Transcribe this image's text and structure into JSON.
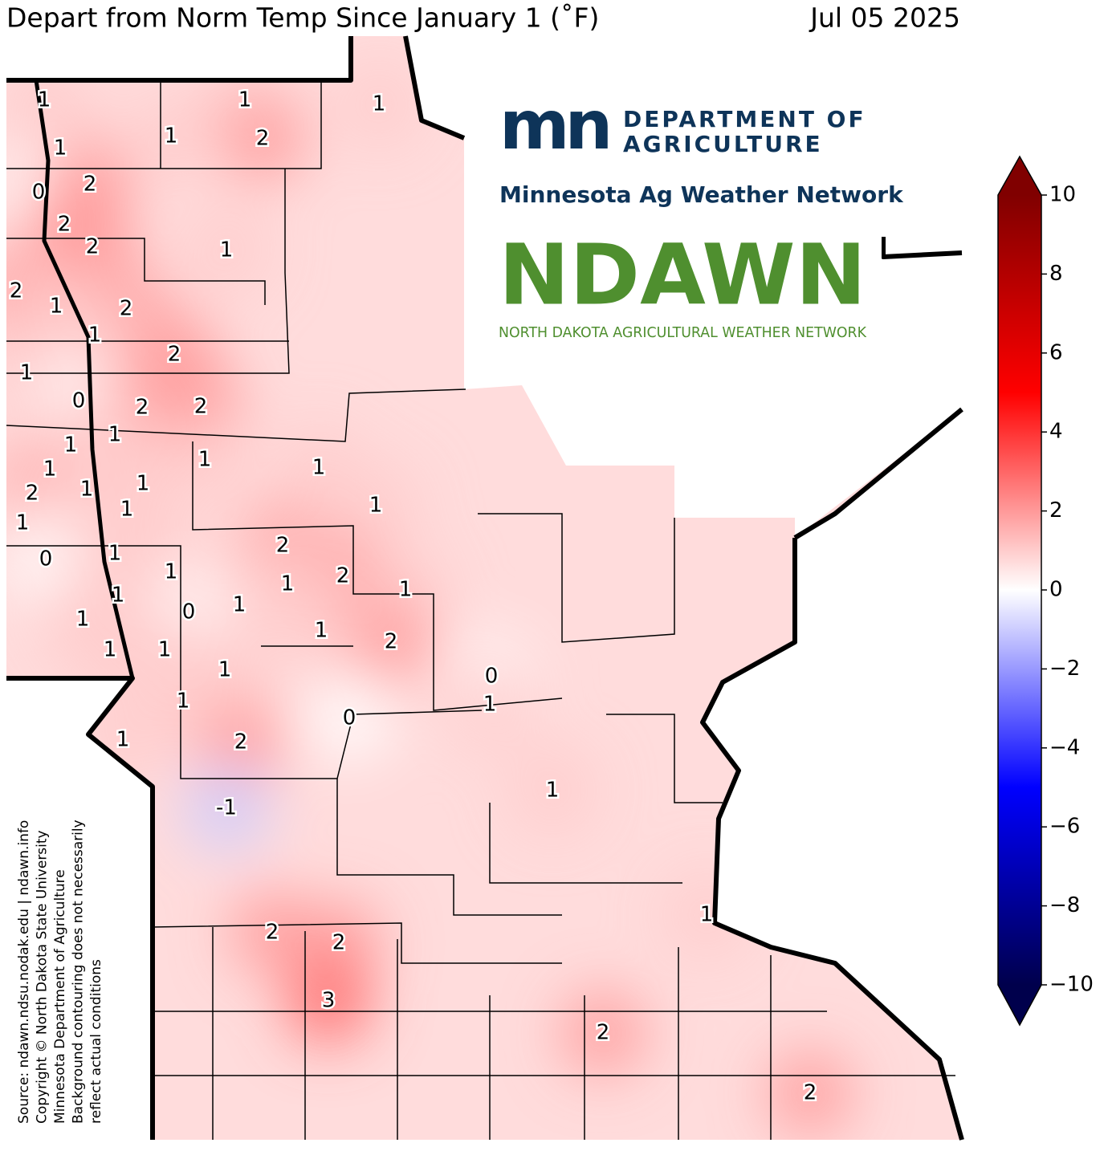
{
  "header": {
    "title": "Depart from Norm Temp Since January 1 (˚F)",
    "date": "Jul 05 2025"
  },
  "logos": {
    "mn": {
      "mark": "mn",
      "line1": "DEPARTMENT OF",
      "line2": "AGRICULTURE"
    },
    "network": "Minnesota Ag Weather Network",
    "ndawn": {
      "name": "NDAWN",
      "subtitle": "NORTH DAKOTA AGRICULTURAL WEATHER NETWORK"
    }
  },
  "source_lines": [
    "Source: ndawn.ndsu.nodak.edu | ndawn.info",
    "Copyright © North Dakota State University",
    "Minnesota Department of Agriculture",
    "Background contouring does not necessarily",
    "reflect actual conditions"
  ],
  "colorbar": {
    "lim": [
      -10,
      10
    ],
    "ticks": [
      {
        "value": -10,
        "label": "−10"
      },
      {
        "value": -8,
        "label": "−8"
      },
      {
        "value": -6,
        "label": "−6"
      },
      {
        "value": -4,
        "label": "−4"
      },
      {
        "value": -2,
        "label": "−2"
      },
      0,
      2,
      4,
      6,
      8,
      10
    ],
    "colors": [
      "#00004c",
      "#0000ff",
      "#ffffff",
      "#ff0000",
      "#800000"
    ]
  },
  "stations": {
    "values": [
      1,
      1,
      1,
      1,
      2,
      1,
      0,
      2,
      2,
      2,
      1,
      2,
      1,
      2,
      1,
      2,
      1,
      0,
      2,
      2,
      1,
      1,
      1,
      2,
      1,
      1,
      1,
      1,
      1,
      1,
      1,
      0,
      1,
      2,
      1,
      2,
      1,
      1,
      1,
      1,
      0,
      1,
      1,
      2,
      1,
      1,
      1,
      0,
      1,
      1,
      0,
      1,
      2,
      1,
      -1,
      1,
      2,
      2,
      3,
      2,
      2
    ]
  }
}
